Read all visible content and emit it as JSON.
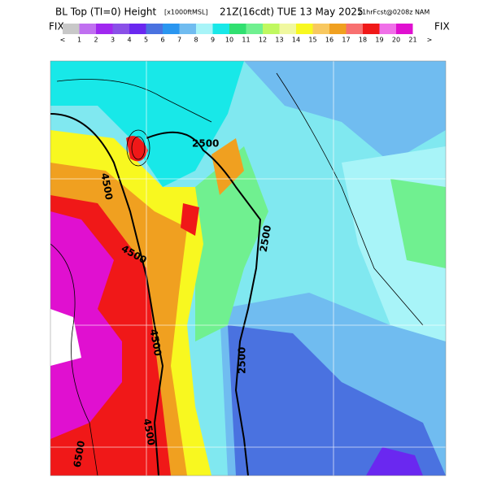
{
  "header": {
    "title": "BL Top (TI=0) Height",
    "units": "[x1000ftMSL]",
    "valid": "21Z(16cdt) TUE 13 May 2025",
    "forecast": "21hrFcst@0208z NAM"
  },
  "legend": {
    "left_label": "FIX",
    "right_label": "FIX",
    "labels": [
      "<",
      "1",
      "2",
      "3",
      "4",
      "5",
      "6",
      "7",
      "8",
      "9",
      "10",
      "11",
      "12",
      "13",
      "14",
      "15",
      "16",
      "17",
      "18",
      "19",
      "20",
      "21",
      ">"
    ],
    "colors": [
      "#c8c8c8",
      "#c070f0",
      "#a028f0",
      "#8a50e8",
      "#6a28f0",
      "#4a72e0",
      "#2a96f0",
      "#70bcf0",
      "#a8f4f8",
      "#18e8e8",
      "#30e070",
      "#70f090",
      "#c0f860",
      "#f0f8a0",
      "#f8f820",
      "#f8c860",
      "#f0a020",
      "#f87070",
      "#f01818",
      "#f070e8",
      "#e010d0",
      "#ffffff"
    ]
  },
  "map": {
    "contour_labels": [
      "2500",
      "4500",
      "4500",
      "2500",
      "4500",
      "2500",
      "4500",
      "6500"
    ]
  }
}
